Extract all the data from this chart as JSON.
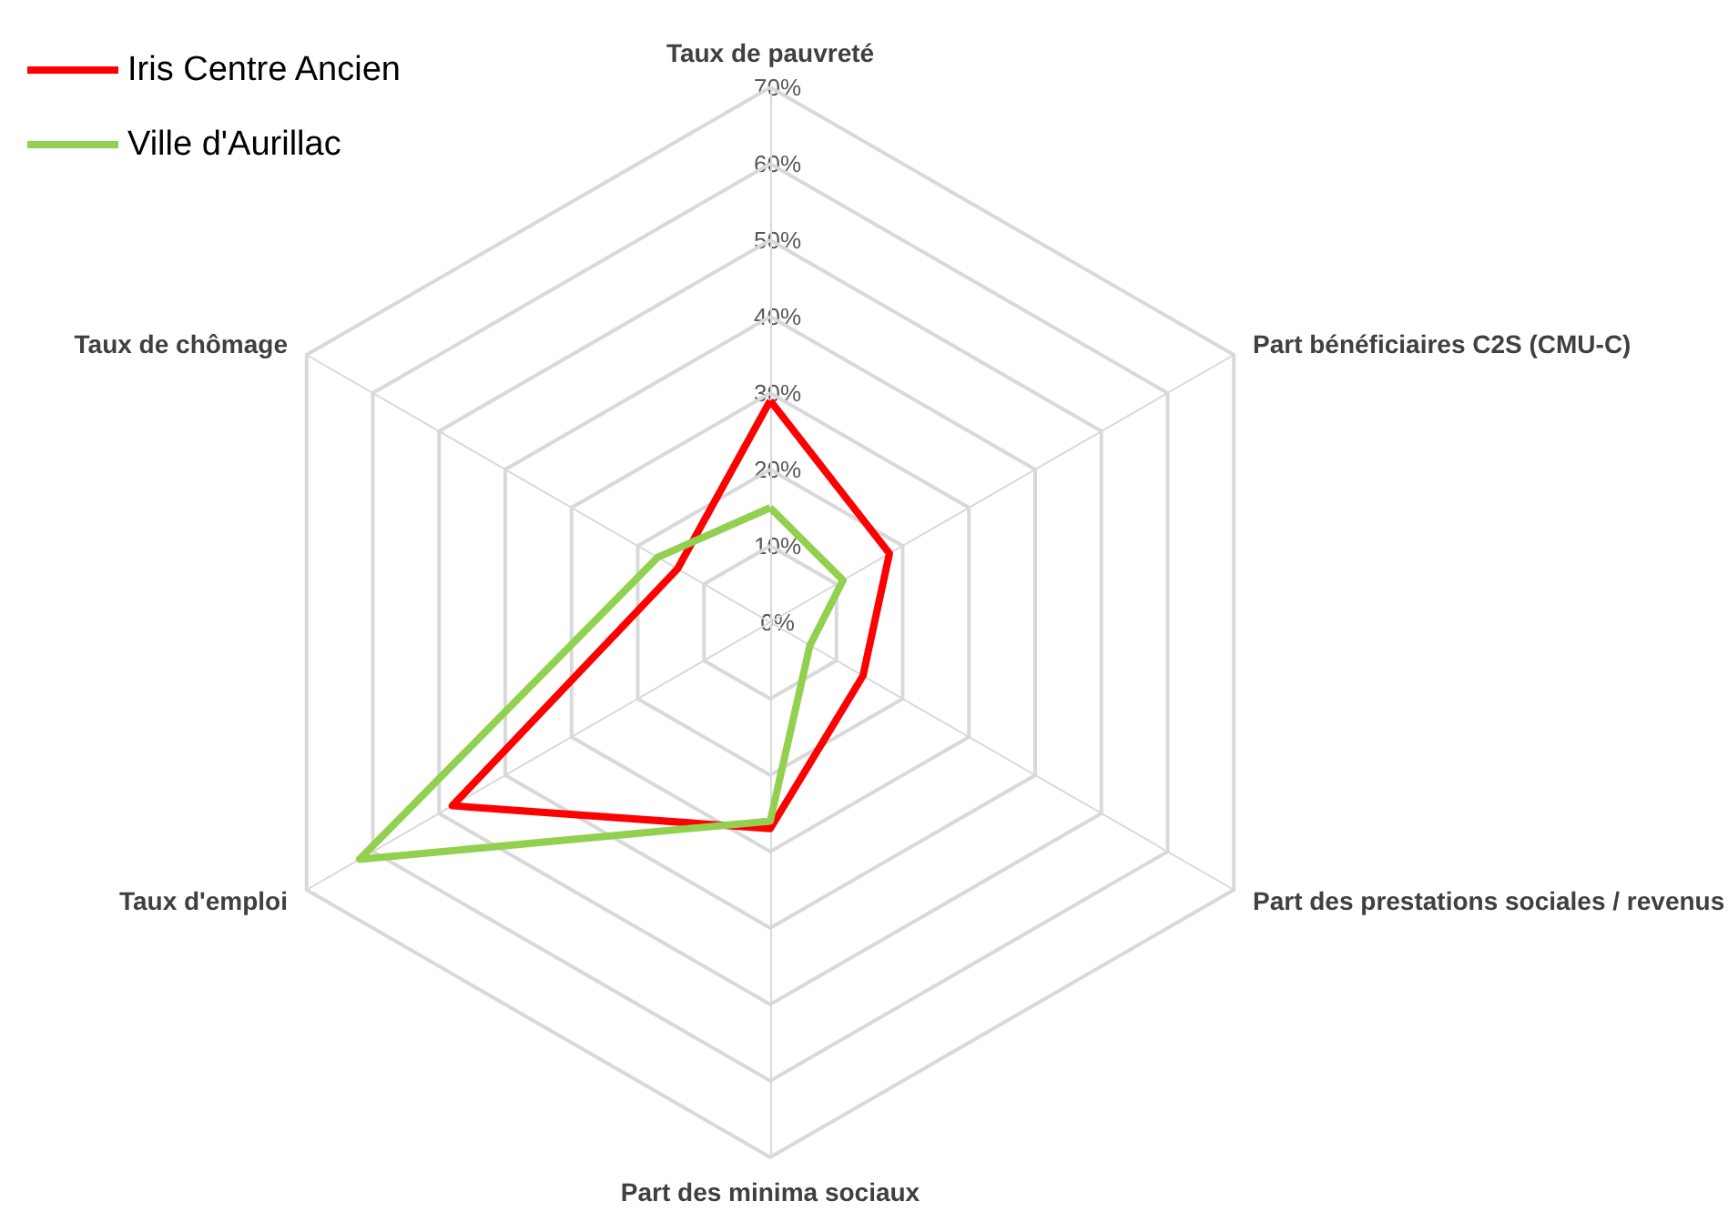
{
  "chart_data": {
    "type": "radar",
    "categories": [
      "Taux de pauvreté",
      "Part bénéficiaires C2S (CMU-C)",
      "Part des prestations sociales / revenus",
      "Part des minima sociaux",
      "Taux d'emploi",
      "Taux de chômage"
    ],
    "series": [
      {
        "name": "Iris Centre Ancien",
        "color": "#ff0000",
        "values": [
          29,
          18,
          14,
          27,
          48,
          14
        ]
      },
      {
        "name": "Ville d'Aurillac",
        "color": "#92d050",
        "values": [
          15,
          11,
          6,
          26,
          62,
          17
        ]
      }
    ],
    "ylim": [
      0,
      70
    ],
    "yticks": [
      {
        "value": 0,
        "label": "0%"
      },
      {
        "value": 10,
        "label": "10%"
      },
      {
        "value": 20,
        "label": "20%"
      },
      {
        "value": 30,
        "label": "30%"
      },
      {
        "value": 40,
        "label": "40%"
      },
      {
        "value": 50,
        "label": "50%"
      },
      {
        "value": 60,
        "label": "60%"
      },
      {
        "value": 70,
        "label": "70%"
      }
    ],
    "legend": "top left",
    "marker": "none",
    "grid": true
  }
}
